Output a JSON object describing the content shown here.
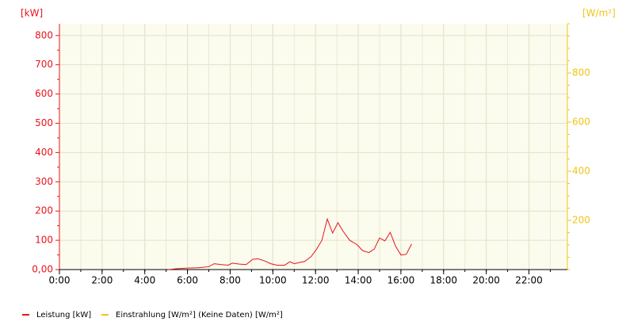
{
  "chart_data": {
    "type": "line",
    "y_unit_label": "[kW]",
    "y2_unit_label": "[W/m²]",
    "xlim": [
      0,
      23.8
    ],
    "xticks": [
      {
        "value": 0,
        "label": "0:00"
      },
      {
        "value": 2,
        "label": "2:00"
      },
      {
        "value": 4,
        "label": "4:00"
      },
      {
        "value": 6,
        "label": "6:00"
      },
      {
        "value": 8,
        "label": "8:00"
      },
      {
        "value": 10,
        "label": "10:00"
      },
      {
        "value": 12,
        "label": "12:00"
      },
      {
        "value": 14,
        "label": "14:00"
      },
      {
        "value": 16,
        "label": "16:00"
      },
      {
        "value": 18,
        "label": "18:00"
      },
      {
        "value": 20,
        "label": "20:00"
      },
      {
        "value": 22,
        "label": "22:00"
      }
    ],
    "ylim": [
      0,
      840
    ],
    "yticks": [
      {
        "value": 0,
        "label": "0,00"
      },
      100,
      200,
      300,
      400,
      500,
      600,
      700,
      800
    ],
    "y2lim": [
      0,
      1000
    ],
    "y2ticks": [
      200,
      400,
      600,
      800
    ],
    "grid": true,
    "series": [
      {
        "name": "Leistung [kW]",
        "color": "#e8141c",
        "axis": "y",
        "x": [
          5.1,
          5.5,
          6.0,
          6.5,
          7.0,
          7.25,
          7.6,
          7.9,
          8.1,
          8.4,
          8.75,
          9.05,
          9.3,
          9.6,
          9.9,
          10.2,
          10.55,
          10.8,
          11.0,
          11.3,
          11.5,
          11.8,
          12.05,
          12.3,
          12.55,
          12.8,
          13.05,
          13.3,
          13.6,
          13.95,
          14.2,
          14.5,
          14.75,
          15.0,
          15.25,
          15.5,
          15.75,
          16.0,
          16.25,
          16.5
        ],
        "values": [
          0,
          3,
          5,
          6,
          10,
          20,
          17,
          15,
          22,
          19,
          17,
          35,
          37,
          30,
          20,
          15,
          15,
          27,
          20,
          25,
          28,
          45,
          70,
          100,
          173,
          125,
          160,
          130,
          100,
          85,
          65,
          58,
          70,
          108,
          98,
          127,
          80,
          50,
          52,
          87
        ]
      },
      {
        "name": "Einstrahlung [W/m²] (Keine Daten) [W/m²]",
        "color": "#f0c419",
        "axis": "y2",
        "x": [],
        "values": []
      }
    ]
  }
}
